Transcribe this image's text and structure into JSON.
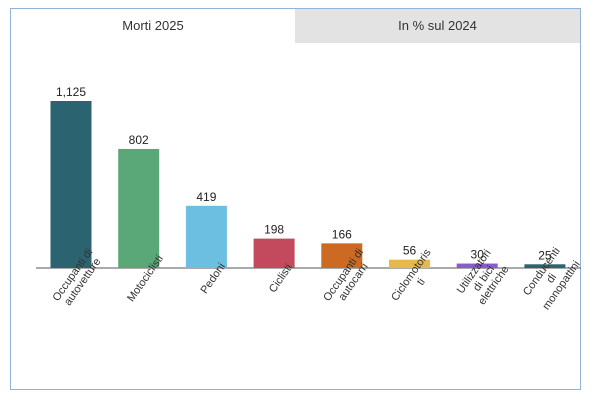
{
  "tabs": [
    {
      "label": "Morti 2025",
      "active": true
    },
    {
      "label": "In % sul 2024",
      "active": false
    }
  ],
  "chart_data": {
    "type": "bar",
    "categories": [
      [
        "Occupanti di",
        "autovetture"
      ],
      [
        "Motociclisti"
      ],
      [
        "Pedoni"
      ],
      [
        "Ciclisti"
      ],
      [
        "Occupanti di",
        "autocarri"
      ],
      [
        "Ciclomotoris",
        "ti"
      ],
      [
        "Utilizzatori",
        "di bici",
        "elettriche"
      ],
      [
        "Conducenti",
        "di",
        "monopattini"
      ]
    ],
    "values": [
      1125,
      802,
      419,
      198,
      166,
      56,
      30,
      25
    ],
    "value_labels": [
      "1,125",
      "802",
      "419",
      "198",
      "166",
      "56",
      "30",
      "25"
    ],
    "colors": [
      "#2b6470",
      "#5aa877",
      "#6cbfe0",
      "#c24a5c",
      "#cc6a24",
      "#e8b94a",
      "#8a5ad0",
      "#2b6470"
    ],
    "title": "",
    "xlabel": "",
    "ylabel": "",
    "ylim": [
      0,
      1125
    ],
    "grid": false,
    "legend": "none"
  }
}
